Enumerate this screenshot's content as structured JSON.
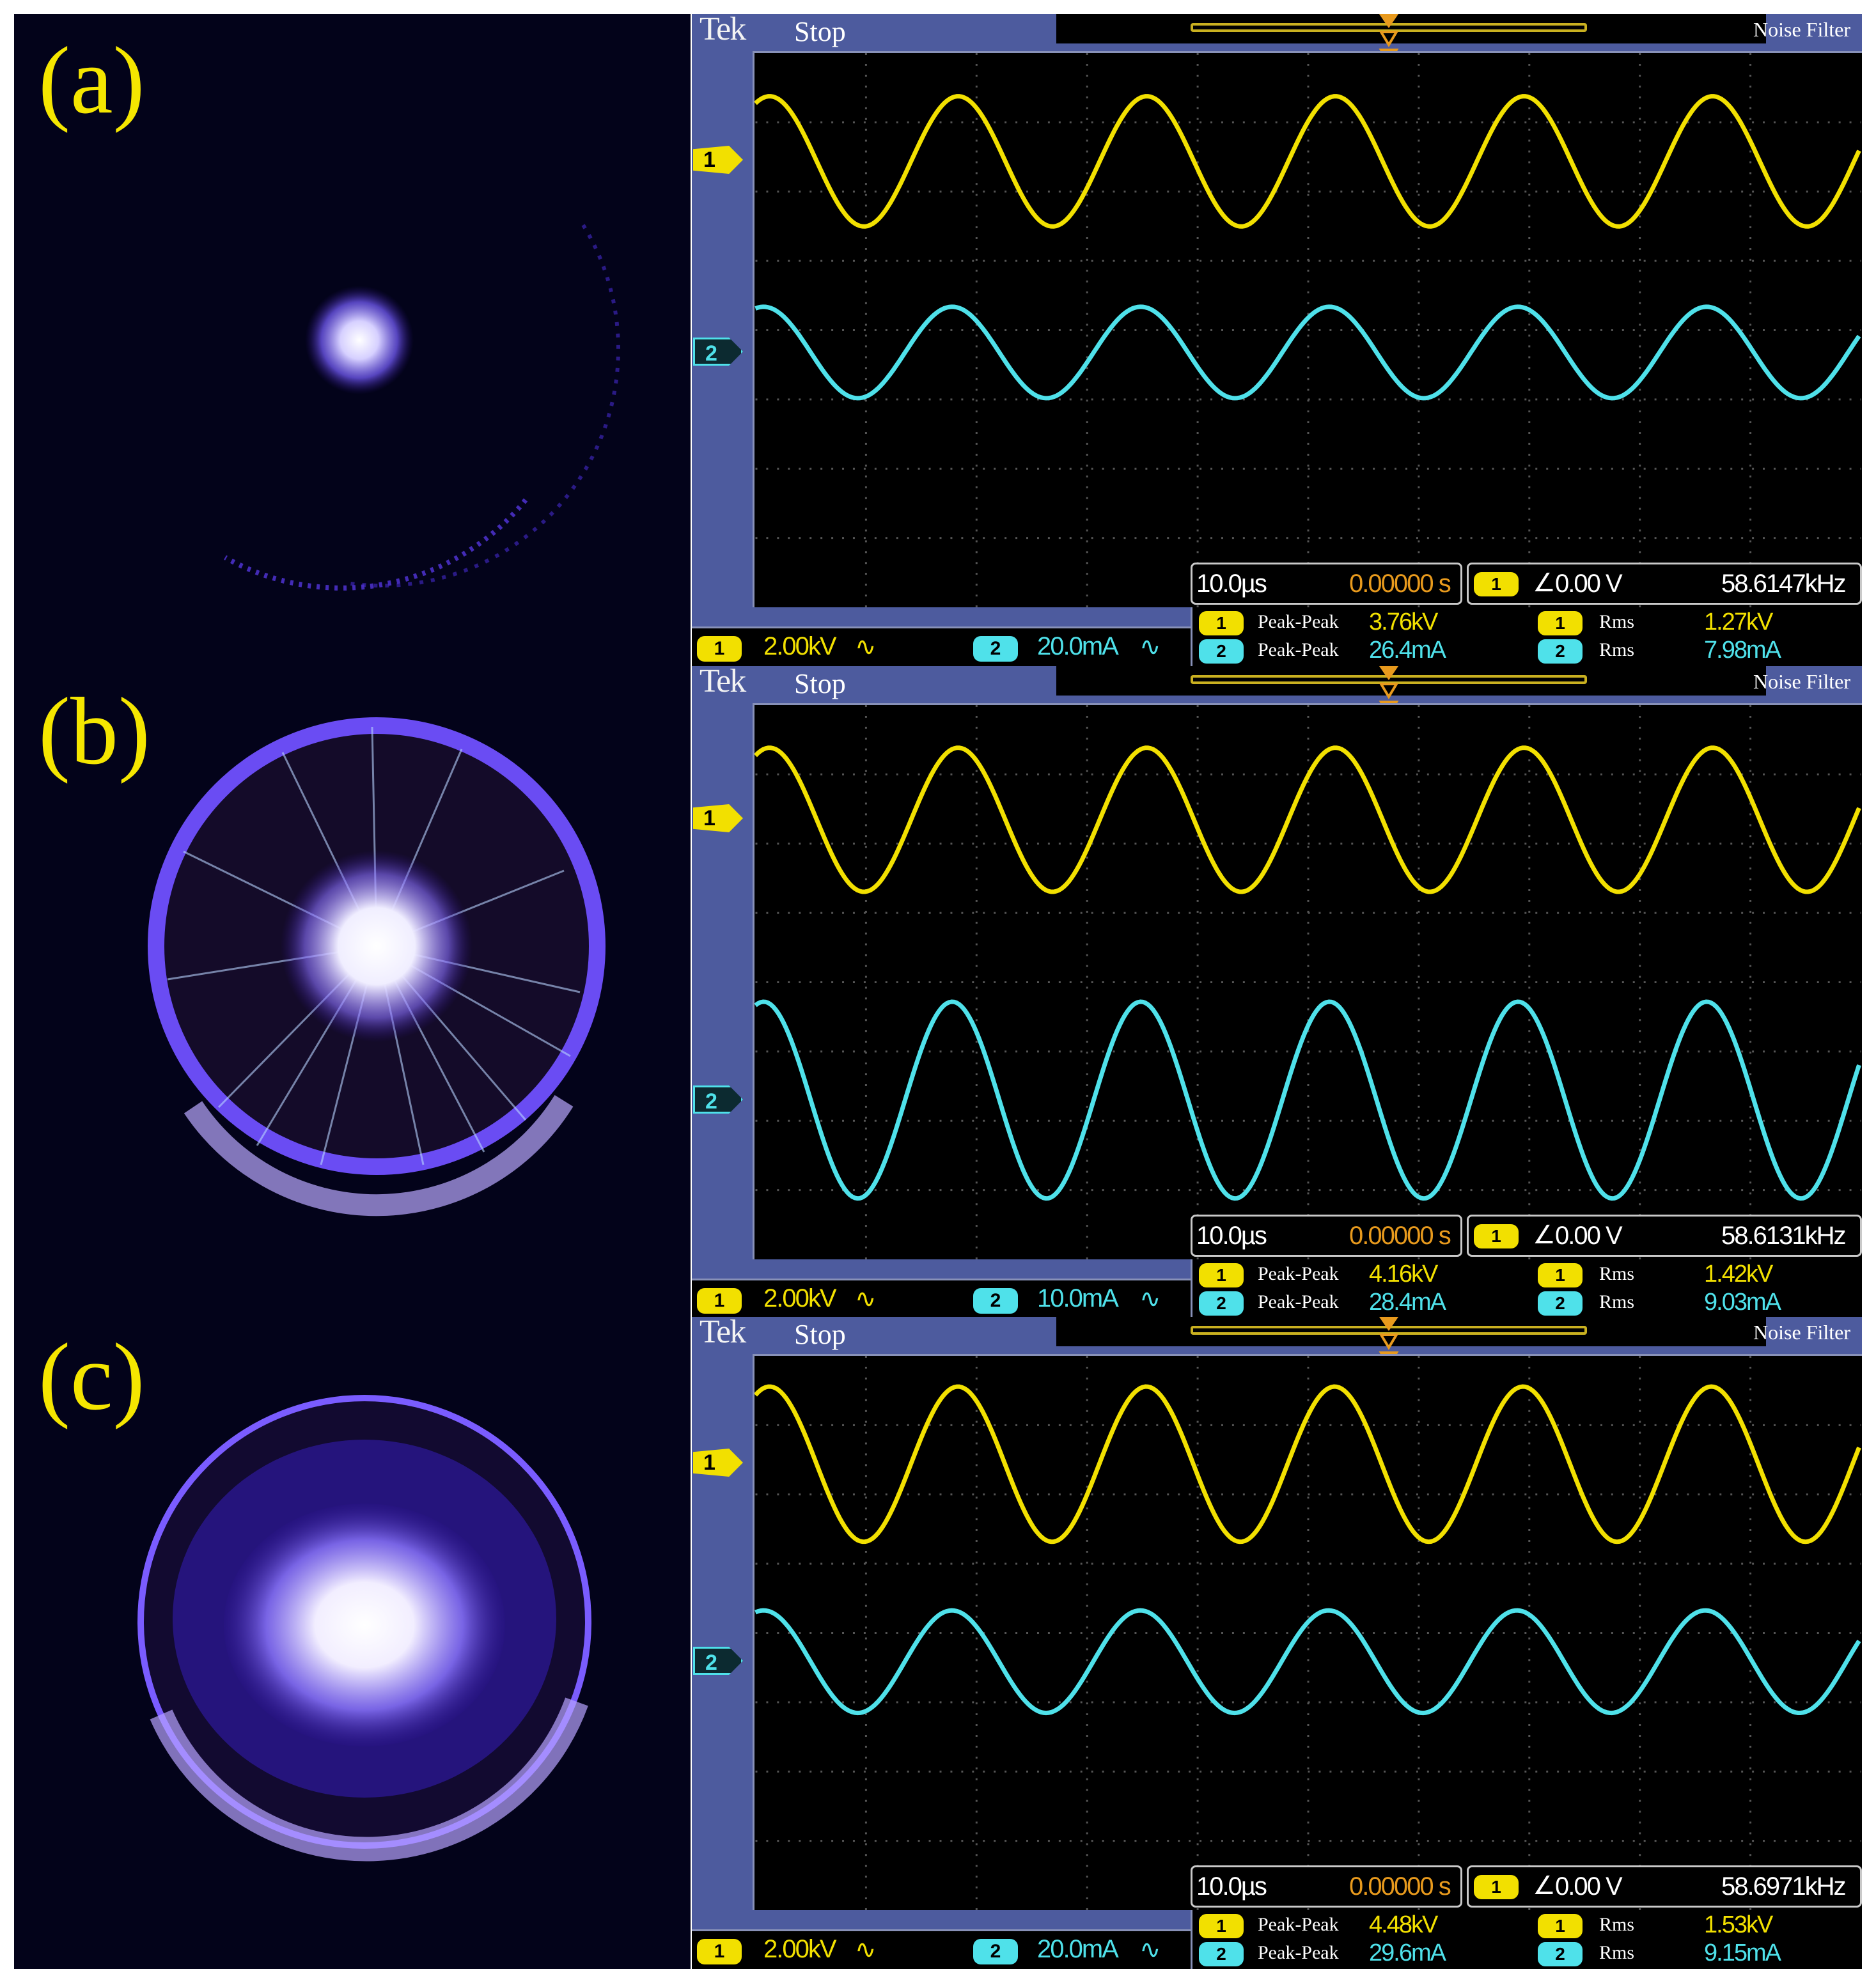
{
  "labels": [
    "(a)",
    "(b)",
    "(c)"
  ],
  "colors": {
    "ch1": "#f2e000",
    "ch2": "#4fe1ea",
    "offset": "#e89a1d",
    "frame": "#4d5b9e"
  },
  "panels": [
    {
      "status": "Stop",
      "brand": "Tek",
      "noise_filter": "Noise Filter",
      "timebase": "10.0µs",
      "delay": "0.00000 s",
      "trigger_level": "0.00 V",
      "frequency": "58.6147kHz",
      "ch1_scale": "2.00kV",
      "ch2_scale": "20.0mA",
      "ch1_pp_label": "Peak-Peak",
      "ch1_pp": "3.76kV",
      "ch1_rms_label": "Rms",
      "ch1_rms": "1.27kV",
      "ch2_pp_label": "Peak-Peak",
      "ch2_pp": "26.4mA",
      "ch2_rms_label": "Rms",
      "ch2_rms": "7.98mA"
    },
    {
      "status": "Stop",
      "brand": "Tek",
      "noise_filter": "Noise Filter",
      "timebase": "10.0µs",
      "delay": "0.00000 s",
      "trigger_level": "0.00 V",
      "frequency": "58.6131kHz",
      "ch1_scale": "2.00kV",
      "ch2_scale": "10.0mA",
      "ch1_pp_label": "Peak-Peak",
      "ch1_pp": "4.16kV",
      "ch1_rms_label": "Rms",
      "ch1_rms": "1.42kV",
      "ch2_pp_label": "Peak-Peak",
      "ch2_pp": "28.4mA",
      "ch2_rms_label": "Rms",
      "ch2_rms": "9.03mA"
    },
    {
      "status": "Stop",
      "brand": "Tek",
      "noise_filter": "Noise Filter",
      "timebase": "10.0µs",
      "delay": "0.00000 s",
      "trigger_level": "0.00 V",
      "frequency": "58.6971kHz",
      "ch1_scale": "2.00kV",
      "ch2_scale": "20.0mA",
      "ch1_pp_label": "Peak-Peak",
      "ch1_pp": "4.48kV",
      "ch1_rms_label": "Rms",
      "ch1_rms": "1.53kV",
      "ch2_pp_label": "Peak-Peak",
      "ch2_pp": "29.6mA",
      "ch2_rms_label": "Rms",
      "ch2_rms": "9.15mA"
    }
  ],
  "chart_data": [
    {
      "type": "line",
      "x_unit": "µs",
      "x_per_div": 10.0,
      "divisions": 10,
      "series": [
        {
          "name": "1",
          "unit": "kV",
          "amplitude": 1.88,
          "frequency_khz": 58.6147
        },
        {
          "name": "2",
          "unit": "mA",
          "amplitude": 13.2,
          "frequency_khz": 58.6147
        }
      ]
    },
    {
      "type": "line",
      "x_unit": "µs",
      "x_per_div": 10.0,
      "divisions": 10,
      "series": [
        {
          "name": "1",
          "unit": "kV",
          "amplitude": 2.08,
          "frequency_khz": 58.6131
        },
        {
          "name": "2",
          "unit": "mA",
          "amplitude": 14.2,
          "frequency_khz": 58.6131
        }
      ]
    },
    {
      "type": "line",
      "x_unit": "µs",
      "x_per_div": 10.0,
      "divisions": 10,
      "series": [
        {
          "name": "1",
          "unit": "kV",
          "amplitude": 2.24,
          "frequency_khz": 58.6971
        },
        {
          "name": "2",
          "unit": "mA",
          "amplitude": 14.8,
          "frequency_khz": 58.6971
        }
      ]
    }
  ]
}
